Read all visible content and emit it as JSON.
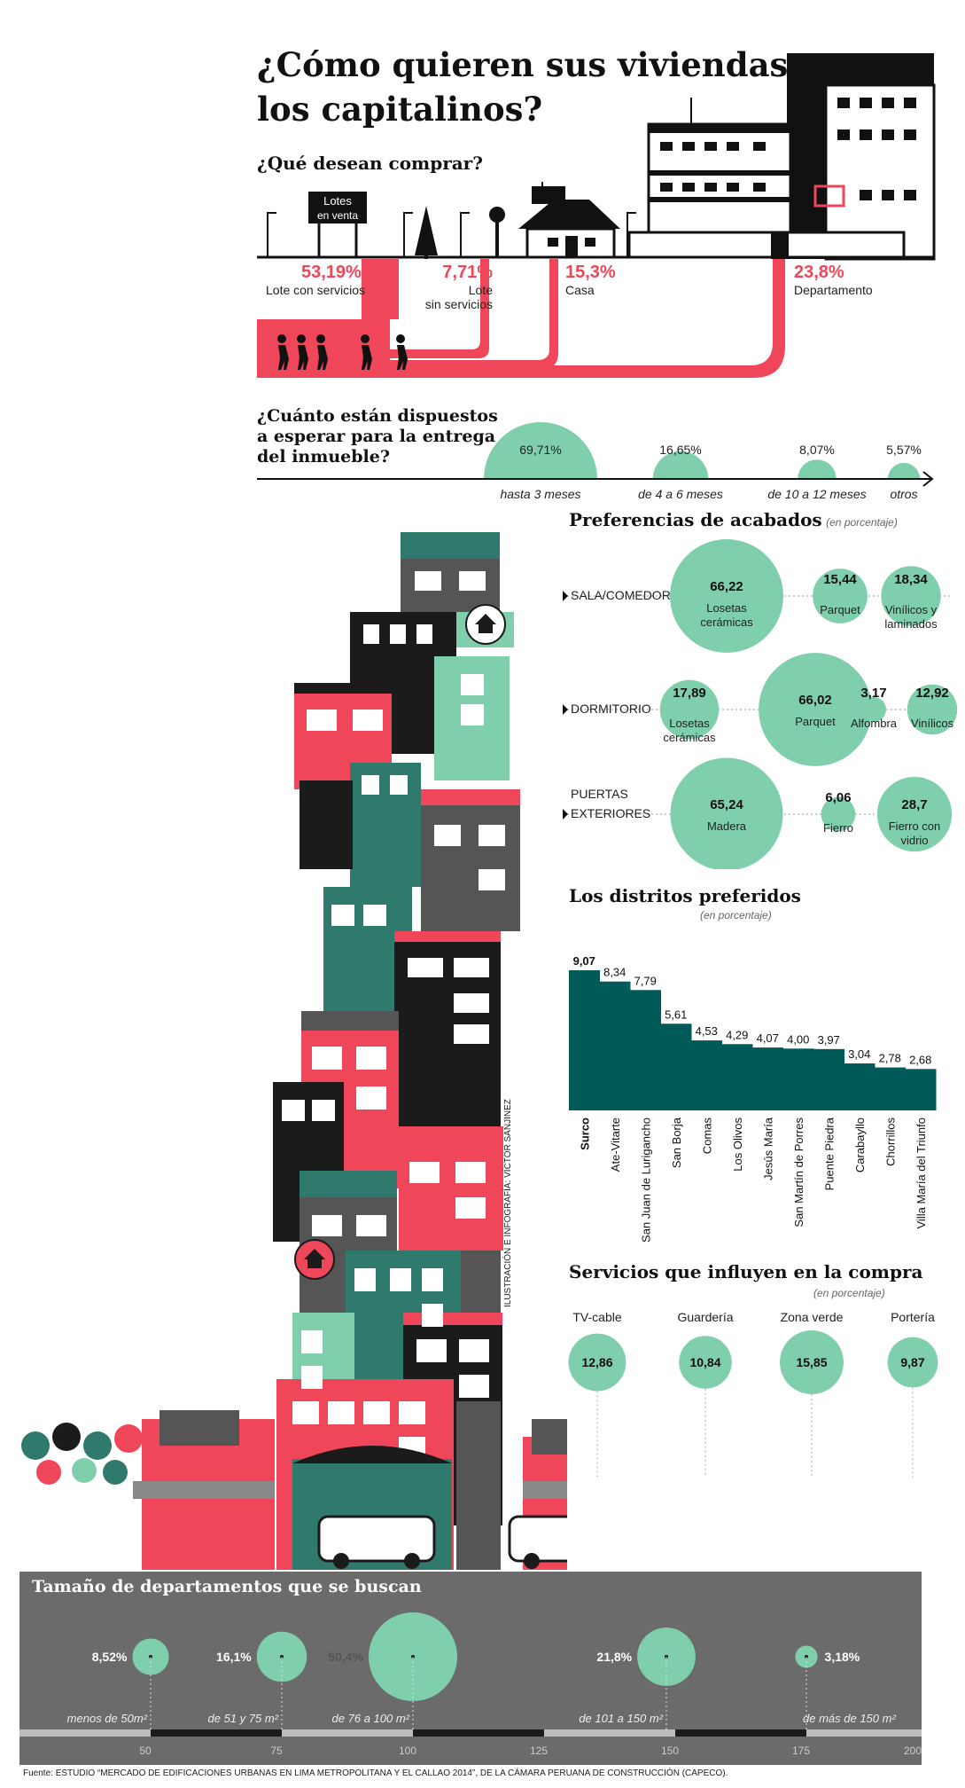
{
  "title_line1": "¿Cómo quieren sus viviendas",
  "title_line2": "los capitalinos?",
  "purchase": {
    "question": "¿Qué desean comprar?",
    "sign_line1": "Lotes",
    "sign_line2": "en venta",
    "items": [
      {
        "value": "53,19%",
        "label1": "Lote con servicios",
        "label2": ""
      },
      {
        "value": "7,71%",
        "label1": "Lote",
        "label2": "sin servicios"
      },
      {
        "value": "15,3%",
        "label1": "Casa",
        "label2": ""
      },
      {
        "value": "23,8%",
        "label1": "Departamento",
        "label2": ""
      }
    ]
  },
  "wait": {
    "question_line1": "¿Cuánto están dispuestos",
    "question_line2": "a esperar para la entrega",
    "question_line3": "del inmueble?",
    "items": [
      {
        "value": 69.71,
        "value_label": "69,71%",
        "label": "hasta 3 meses"
      },
      {
        "value": 16.65,
        "value_label": "16,65%",
        "label": "de 4 a 6 meses"
      },
      {
        "value": 8.07,
        "value_label": "8,07%",
        "label": "de 10 a 12 meses"
      },
      {
        "value": 5.57,
        "value_label": "5,57%",
        "label": "otros"
      }
    ]
  },
  "finishes": {
    "title": "Preferencias de acabados",
    "unit": "(en porcentaje)",
    "rows": [
      {
        "name_line1": "SALA/COMEDOR",
        "name_line2": "",
        "items": [
          {
            "value": 66.22,
            "value_label": "66,22",
            "label1": "Losetas",
            "label2": "cerámicas"
          },
          {
            "value": 15.44,
            "value_label": "15,44",
            "label1": "Parquet",
            "label2": ""
          },
          {
            "value": 18.34,
            "value_label": "18,34",
            "label1": "Vinílicos y",
            "label2": "laminados"
          }
        ]
      },
      {
        "name_line1": "DORMITORIO",
        "name_line2": "",
        "items": [
          {
            "value": 17.89,
            "value_label": "17,89",
            "label1": "Losetas",
            "label2": "cerámicas"
          },
          {
            "value": 66.02,
            "value_label": "66,02",
            "label1": "Parquet",
            "label2": ""
          },
          {
            "value": 3.17,
            "value_label": "3,17",
            "label1": "Alfombra",
            "label2": ""
          },
          {
            "value": 12.92,
            "value_label": "12,92",
            "label1": "Vinílicos",
            "label2": ""
          }
        ]
      },
      {
        "name_line1": "PUERTAS",
        "name_line2": "EXTERIORES",
        "items": [
          {
            "value": 65.24,
            "value_label": "65,24",
            "label1": "Madera",
            "label2": ""
          },
          {
            "value": 6.06,
            "value_label": "6,06",
            "label1": "Fierro",
            "label2": ""
          },
          {
            "value": 28.7,
            "value_label": "28,7",
            "label1": "Fierro con",
            "label2": "vidrio"
          }
        ]
      }
    ]
  },
  "chart_data": {
    "type": "bar",
    "title": "Los distritos preferidos",
    "unit": "(en porcentaje)",
    "categories": [
      "Surco",
      "Ate-Vitarte",
      "San Juan de Lurigancho",
      "San Borja",
      "Comas",
      "Los Olivos",
      "Jesús María",
      "San Martín de Porres",
      "Puente Piedra",
      "Carabayllo",
      "Chorrillos",
      "Villa María del Triunfo"
    ],
    "values": [
      9.07,
      8.34,
      7.79,
      5.61,
      4.53,
      4.29,
      4.07,
      4.0,
      3.97,
      3.04,
      2.78,
      2.68
    ],
    "value_labels": [
      "9,07",
      "8,34",
      "7,79",
      "5,61",
      "4,53",
      "4,29",
      "4,07",
      "4,00",
      "3,97",
      "3,04",
      "2,78",
      "2,68"
    ],
    "color": "#005a57"
  },
  "services": {
    "title": "Servicios que influyen en la compra",
    "unit": "(en porcentaje)",
    "items": [
      {
        "label": "TV-cable",
        "value": 12.86,
        "value_label": "12,86"
      },
      {
        "label": "Guardería",
        "value": 10.84,
        "value_label": "10,84"
      },
      {
        "label": "Zona verde",
        "value": 15.85,
        "value_label": "15,85"
      },
      {
        "label": "Portería",
        "value": 9.87,
        "value_label": "9,87"
      }
    ]
  },
  "sizes": {
    "title": "Tamaño de departamentos que se buscan",
    "scale_ticks": [
      "50",
      "75",
      "100",
      "125",
      "150",
      "175",
      "200"
    ],
    "items": [
      {
        "value": 8.52,
        "value_label": "8,52%",
        "range": "menos de 50m²"
      },
      {
        "value": 16.1,
        "value_label": "16,1%",
        "range": "de 51 y 75 m²"
      },
      {
        "value": 50.4,
        "value_label": "50,4%",
        "range": "de 76 a 100 m²"
      },
      {
        "value": 21.8,
        "value_label": "21,8%",
        "range": "de 101 a 150 m²"
      },
      {
        "value": 3.18,
        "value_label": "3,18%",
        "range": "de más de 150 m²"
      }
    ]
  },
  "credit": "ILUSTRACIÓN E INFOGRAFÍA: VÍCTOR SANJINEZ",
  "source": "Fuente: ESTUDIO “MERCADO DE EDIFICACIONES URBANAS EN LIMA METROPOLITANA Y EL CALLAO 2014”, DE LA CÁMARA PERUANA DE CONSTRUCCIÓN (CAPECO).",
  "colors": {
    "red": "#f0465a",
    "mint": "#7fcfac",
    "teal": "#005a57",
    "dark": "#222222",
    "grey": "#6b6b6b"
  }
}
